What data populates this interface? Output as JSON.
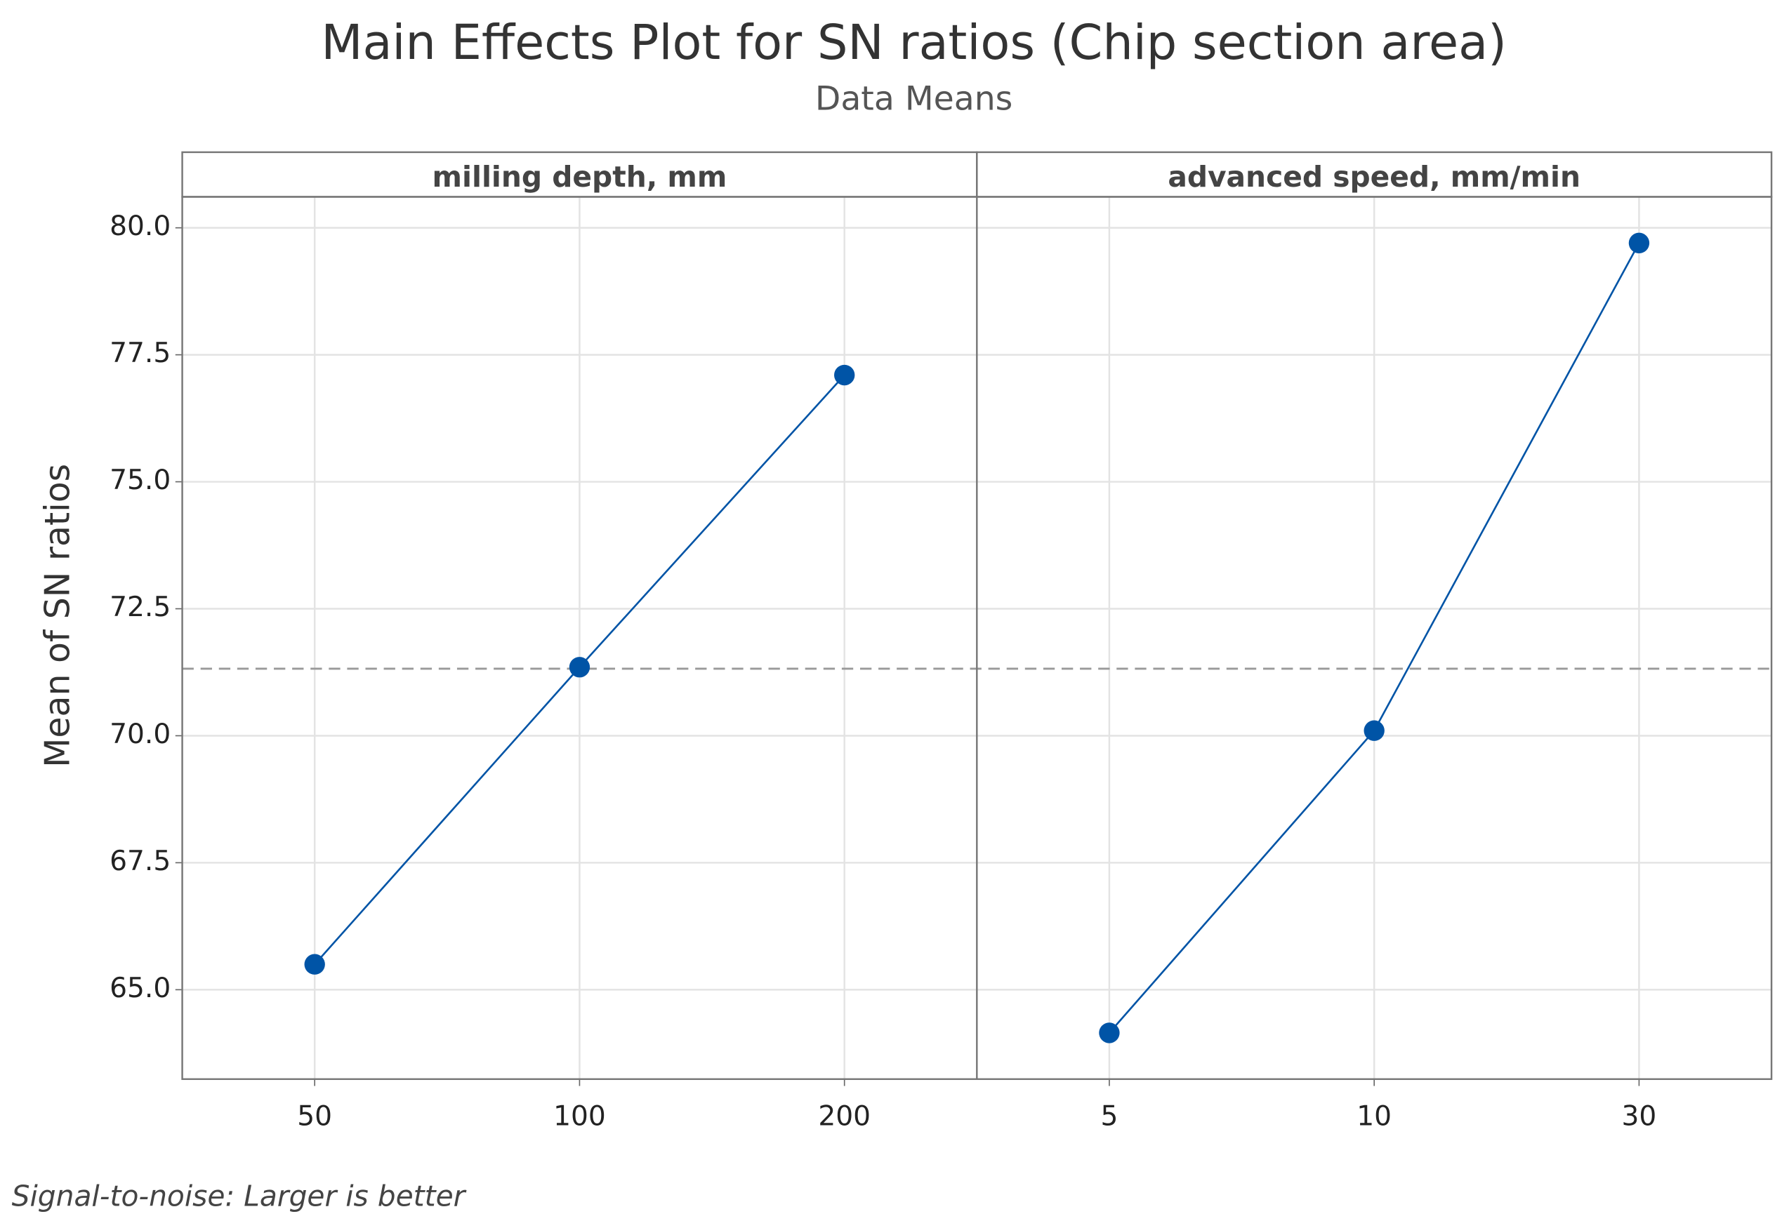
{
  "chart_data": {
    "type": "line",
    "title": "Main Effects Plot for SN ratios (Chip section area)",
    "subtitle": "Data Means",
    "y_label": "Mean of SN ratios",
    "footnote": "Signal-to-noise: Larger is better",
    "color": "#0054a6",
    "grid": true,
    "ylim": [
      63.24,
      80.61
    ],
    "yticks": [
      {
        "value": 65,
        "label": "65.0"
      },
      67.5,
      {
        "value": 70,
        "label": "70.0"
      },
      72.5,
      {
        "value": 75,
        "label": "75.0"
      },
      77.5,
      {
        "value": 80,
        "label": "80.0"
      }
    ],
    "reference_line": 71.32,
    "panels": [
      {
        "title": "milling depth, mm",
        "categories": [
          "50",
          "100",
          "200"
        ],
        "values": [
          65.5,
          71.35,
          77.1
        ]
      },
      {
        "title": "advanced speed, mm/min",
        "categories": [
          "5",
          "10",
          "30"
        ],
        "values": [
          64.15,
          70.1,
          79.7
        ]
      }
    ]
  }
}
